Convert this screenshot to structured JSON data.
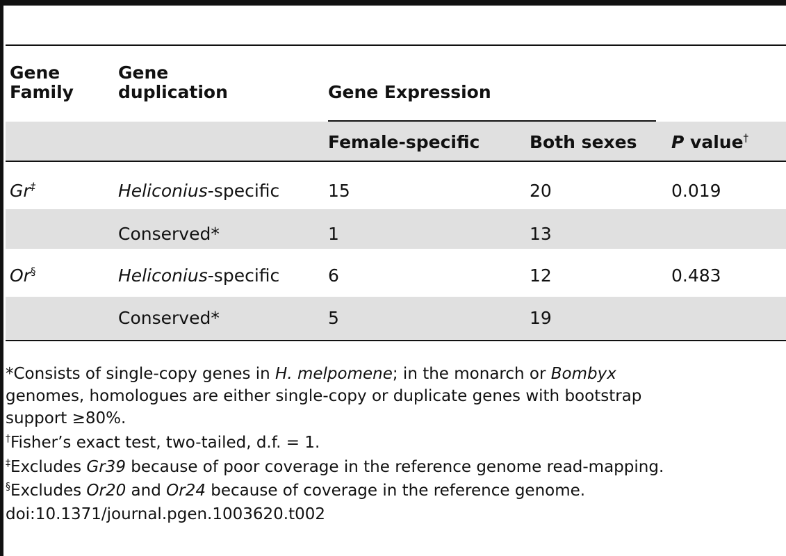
{
  "header": {
    "gene_family": [
      "Gene",
      "Family"
    ],
    "gene_duplication": [
      "Gene",
      "duplication"
    ],
    "gene_expression": "Gene Expression",
    "female_specific": "Female-specific",
    "both_sexes": "Both sexes",
    "p_italic": "P",
    "p_rest": " value",
    "p_mark": "†"
  },
  "rows": [
    {
      "family": "Gr",
      "family_mark": "‡",
      "dup_italic": "Heliconius",
      "dup_rest": "-specific",
      "female": "15",
      "both": "20",
      "p": "0.019"
    },
    {
      "family": "",
      "family_mark": "",
      "dup_italic": "",
      "dup_rest": "Conserved*",
      "female": "1",
      "both": "13",
      "p": ""
    },
    {
      "family": "Or",
      "family_mark": "§",
      "dup_italic": "Heliconius",
      "dup_rest": "-specific",
      "female": "6",
      "both": "12",
      "p": "0.483"
    },
    {
      "family": "",
      "family_mark": "",
      "dup_italic": "",
      "dup_rest": "Conserved*",
      "female": "5",
      "both": "19",
      "p": ""
    }
  ],
  "footnotes": {
    "star_a": "*Consists of single-copy genes in ",
    "star_a_i": "H. melpomene",
    "star_b": "; in the monarch or ",
    "star_b_i": "Bombyx",
    "star_line2": "genomes, homologues are either single-copy or duplicate genes with bootstrap",
    "star_line3": "support ≥80%.",
    "dagger_mark": "†",
    "dagger_text": "Fisher’s exact test, two-tailed, d.f. = 1.",
    "ddagger_mark": "‡",
    "ddagger_a": "Excludes ",
    "ddagger_i": "Gr39",
    "ddagger_b": " because of poor coverage in the reference genome read-mapping.",
    "section_mark": "§",
    "section_a": "Excludes ",
    "section_i1": "Or20",
    "section_mid": " and ",
    "section_i2": "Or24",
    "section_b": " because of coverage in the reference genome.",
    "doi": "doi:10.1371/journal.pgen.1003620.t002"
  }
}
